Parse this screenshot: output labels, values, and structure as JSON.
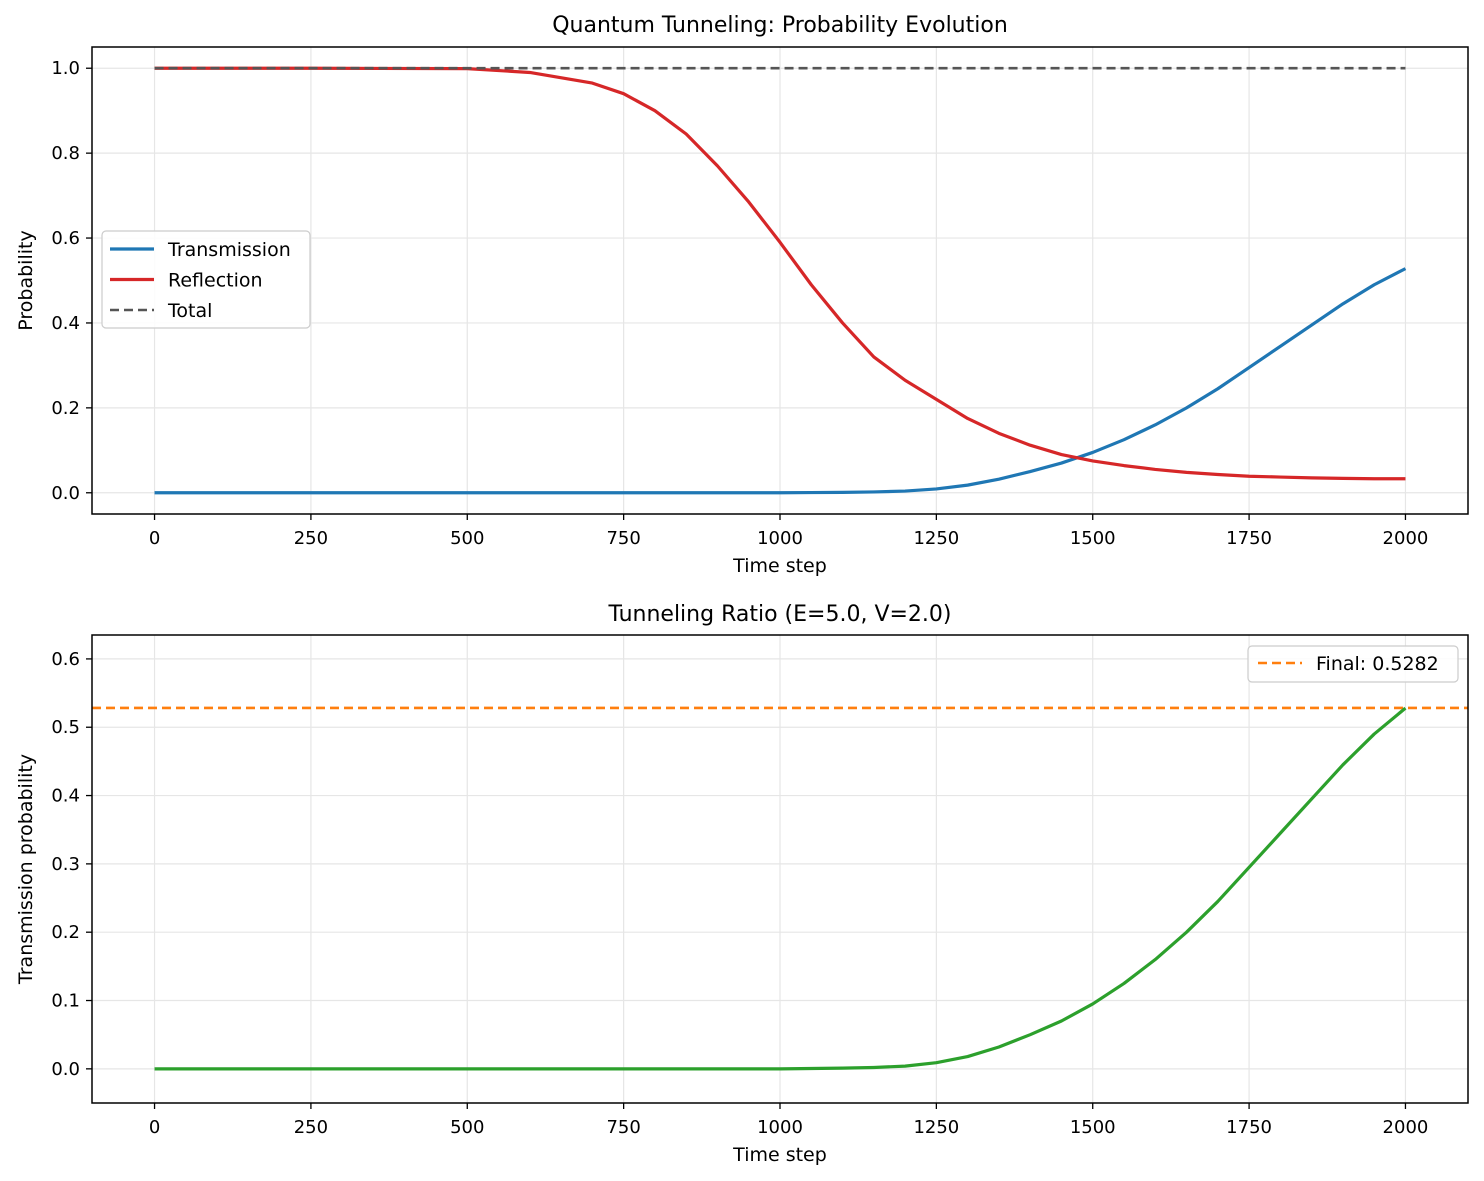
{
  "chart_data": [
    {
      "type": "line",
      "title": "Quantum Tunneling: Probability Evolution",
      "xlabel": "Time step",
      "ylabel": "Probability",
      "xlim": [
        -100,
        2100
      ],
      "ylim": [
        -0.05,
        1.05
      ],
      "xticks": [
        0,
        250,
        500,
        750,
        1000,
        1250,
        1500,
        1750,
        2000
      ],
      "xtick_labels": [
        "0",
        "250",
        "500",
        "750",
        "1000",
        "1250",
        "1500",
        "1750",
        "2000"
      ],
      "yticks": [
        0.0,
        0.2,
        0.4,
        0.6,
        0.8,
        1.0
      ],
      "ytick_labels": [
        "0.0",
        "0.2",
        "0.4",
        "0.6",
        "0.8",
        "1.0"
      ],
      "grid": true,
      "legend_position": "center-left",
      "x": [
        0,
        250,
        500,
        600,
        700,
        750,
        800,
        850,
        900,
        950,
        1000,
        1050,
        1100,
        1150,
        1200,
        1250,
        1300,
        1350,
        1400,
        1450,
        1500,
        1550,
        1600,
        1650,
        1700,
        1750,
        1800,
        1850,
        1900,
        1950,
        2000
      ],
      "series": [
        {
          "name": "Transmission",
          "color": "#1f77b4",
          "dash": "solid",
          "values": [
            0.0,
            0.0,
            0.0,
            0.0,
            0.0,
            0.0,
            0.0,
            0.0,
            0.0,
            0.0,
            0.0,
            0.0005,
            0.001,
            0.002,
            0.004,
            0.009,
            0.018,
            0.032,
            0.05,
            0.07,
            0.095,
            0.125,
            0.16,
            0.2,
            0.245,
            0.295,
            0.345,
            0.395,
            0.445,
            0.49,
            0.528
          ]
        },
        {
          "name": "Reflection",
          "color": "#d62728",
          "dash": "solid",
          "values": [
            1.0,
            1.0,
            0.999,
            0.99,
            0.965,
            0.94,
            0.9,
            0.845,
            0.77,
            0.685,
            0.59,
            0.49,
            0.4,
            0.32,
            0.265,
            0.22,
            0.175,
            0.14,
            0.112,
            0.09,
            0.075,
            0.064,
            0.055,
            0.048,
            0.043,
            0.039,
            0.037,
            0.035,
            0.034,
            0.033,
            0.033
          ]
        },
        {
          "name": "Total",
          "color": "#555555",
          "dash": "dashed",
          "values": [
            1.0,
            1.0,
            1.0,
            1.0,
            1.0,
            1.0,
            1.0,
            1.0,
            1.0,
            1.0,
            1.0,
            1.0,
            1.0,
            1.0,
            1.0,
            1.0,
            1.0,
            1.0,
            1.0,
            1.0,
            1.0,
            1.0,
            1.0,
            1.0,
            1.0,
            1.0,
            1.0,
            1.0,
            1.0,
            1.0,
            1.0
          ]
        }
      ]
    },
    {
      "type": "line",
      "title": "Tunneling Ratio (E=5.0, V=2.0)",
      "xlabel": "Time step",
      "ylabel": "Transmission probability",
      "xlim": [
        -100,
        2100
      ],
      "ylim": [
        -0.05,
        0.635
      ],
      "xticks": [
        0,
        250,
        500,
        750,
        1000,
        1250,
        1500,
        1750,
        2000
      ],
      "xtick_labels": [
        "0",
        "250",
        "500",
        "750",
        "1000",
        "1250",
        "1500",
        "1750",
        "2000"
      ],
      "yticks": [
        0.0,
        0.1,
        0.2,
        0.3,
        0.4,
        0.5,
        0.6
      ],
      "ytick_labels": [
        "0.0",
        "0.1",
        "0.2",
        "0.3",
        "0.4",
        "0.5",
        "0.6"
      ],
      "grid": true,
      "legend_position": "top-right",
      "x": [
        0,
        250,
        500,
        600,
        700,
        750,
        800,
        850,
        900,
        950,
        1000,
        1050,
        1100,
        1150,
        1200,
        1250,
        1300,
        1350,
        1400,
        1450,
        1500,
        1550,
        1600,
        1650,
        1700,
        1750,
        1800,
        1850,
        1900,
        1950,
        2000
      ],
      "series": [
        {
          "color": "#2ca02c",
          "dash": "solid",
          "values": [
            0.0,
            0.0,
            0.0,
            0.0,
            0.0,
            0.0,
            0.0,
            0.0,
            0.0,
            0.0,
            0.0,
            0.0005,
            0.001,
            0.002,
            0.004,
            0.009,
            0.018,
            0.032,
            0.05,
            0.07,
            0.095,
            0.125,
            0.16,
            0.2,
            0.245,
            0.295,
            0.345,
            0.395,
            0.445,
            0.49,
            0.528
          ]
        }
      ],
      "hline": {
        "name": "Final: 0.5282",
        "value": 0.5282,
        "color": "#ff7f0e",
        "dash": "dashed"
      }
    }
  ]
}
